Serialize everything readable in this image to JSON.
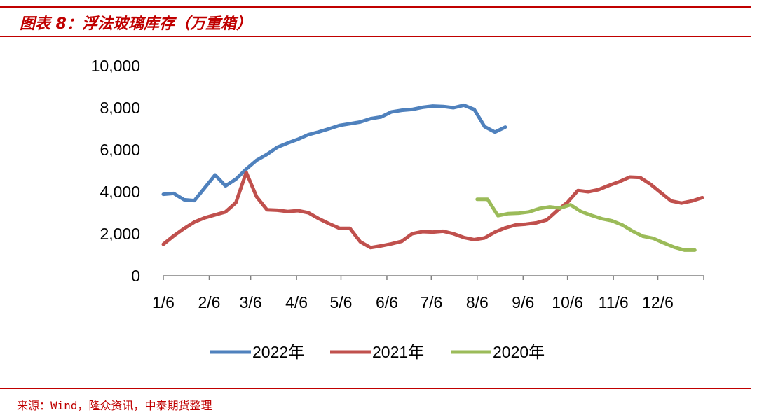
{
  "header": {
    "title": "图表 8：浮法玻璃库存（万重箱）"
  },
  "footer": {
    "source": "来源：Wind，隆众资讯，中泰期货整理"
  },
  "chart_data": {
    "type": "line",
    "title": "图表 8：浮法玻璃库存（万重箱）",
    "xlabel": "",
    "ylabel": "",
    "ylim": [
      0,
      10000
    ],
    "y_ticks": [
      "10,000",
      "8,000",
      "6,000",
      "4,000",
      "2,000",
      "0"
    ],
    "x_ticks": [
      "1/6",
      "2/6",
      "3/6",
      "4/6",
      "5/6",
      "6/6",
      "7/6",
      "8/6",
      "9/6",
      "10/6",
      "11/6",
      "12/6"
    ],
    "grid": false,
    "legend": "bottom",
    "series": [
      {
        "name": "2022年",
        "color": "#4f81bd",
        "points": [
          [
            "1/6",
            3880
          ],
          [
            "1/13",
            3920
          ],
          [
            "1/20",
            3620
          ],
          [
            "1/27",
            3580
          ],
          [
            "2/10",
            4800
          ],
          [
            "2/17",
            4280
          ],
          [
            "2/24",
            4600
          ],
          [
            "3/3",
            5080
          ],
          [
            "3/10",
            5500
          ],
          [
            "3/17",
            5780
          ],
          [
            "3/24",
            6120
          ],
          [
            "3/31",
            6320
          ],
          [
            "4/7",
            6500
          ],
          [
            "4/14",
            6720
          ],
          [
            "4/21",
            6850
          ],
          [
            "4/28",
            7000
          ],
          [
            "5/5",
            7160
          ],
          [
            "5/12",
            7240
          ],
          [
            "5/19",
            7320
          ],
          [
            "5/26",
            7480
          ],
          [
            "6/2",
            7560
          ],
          [
            "6/9",
            7800
          ],
          [
            "6/16",
            7880
          ],
          [
            "6/23",
            7920
          ],
          [
            "6/30",
            8020
          ],
          [
            "7/7",
            8080
          ],
          [
            "7/14",
            8060
          ],
          [
            "7/21",
            8000
          ],
          [
            "7/28",
            8120
          ],
          [
            "8/4",
            7920
          ],
          [
            "8/11",
            7100
          ],
          [
            "8/18",
            6840
          ],
          [
            "8/25",
            7080
          ]
        ]
      },
      {
        "name": "2021年",
        "color": "#c0504d",
        "points": [
          [
            "1/6",
            1500
          ],
          [
            "1/13",
            1900
          ],
          [
            "1/20",
            2250
          ],
          [
            "1/27",
            2560
          ],
          [
            "2/3",
            2760
          ],
          [
            "2/17",
            3040
          ],
          [
            "2/24",
            3480
          ],
          [
            "3/3",
            4920
          ],
          [
            "3/10",
            3760
          ],
          [
            "3/17",
            3140
          ],
          [
            "3/24",
            3120
          ],
          [
            "3/31",
            3060
          ],
          [
            "4/7",
            3100
          ],
          [
            "4/14",
            3000
          ],
          [
            "4/21",
            2720
          ],
          [
            "4/28",
            2480
          ],
          [
            "5/5",
            2260
          ],
          [
            "5/12",
            2260
          ],
          [
            "5/19",
            1620
          ],
          [
            "5/26",
            1340
          ],
          [
            "6/2",
            1420
          ],
          [
            "6/9",
            1520
          ],
          [
            "6/16",
            1640
          ],
          [
            "6/23",
            2000
          ],
          [
            "6/30",
            2100
          ],
          [
            "7/7",
            2080
          ],
          [
            "7/14",
            2120
          ],
          [
            "7/21",
            2000
          ],
          [
            "7/28",
            1820
          ],
          [
            "8/4",
            1720
          ],
          [
            "8/11",
            1800
          ],
          [
            "8/18",
            2080
          ],
          [
            "8/25",
            2280
          ],
          [
            "9/1",
            2420
          ],
          [
            "9/8",
            2460
          ],
          [
            "9/15",
            2520
          ],
          [
            "9/22",
            2660
          ],
          [
            "9/29",
            3100
          ],
          [
            "10/6",
            3500
          ],
          [
            "10/13",
            4060
          ],
          [
            "10/20",
            4000
          ],
          [
            "10/27",
            4100
          ],
          [
            "11/3",
            4300
          ],
          [
            "11/10",
            4480
          ],
          [
            "11/17",
            4700
          ],
          [
            "11/24",
            4680
          ],
          [
            "12/1",
            4360
          ],
          [
            "12/8",
            3960
          ],
          [
            "12/15",
            3560
          ],
          [
            "12/22",
            3460
          ],
          [
            "12/29",
            3560
          ],
          [
            "1/5",
            3720
          ]
        ]
      },
      {
        "name": "2020年",
        "color": "#9bbb59",
        "points": [
          [
            "8/6",
            3640
          ],
          [
            "8/13",
            3640
          ],
          [
            "8/20",
            2860
          ],
          [
            "8/27",
            2960
          ],
          [
            "9/3",
            2980
          ],
          [
            "9/10",
            3040
          ],
          [
            "9/17",
            3200
          ],
          [
            "9/24",
            3280
          ],
          [
            "10/1",
            3220
          ],
          [
            "10/8",
            3380
          ],
          [
            "10/15",
            3060
          ],
          [
            "10/22",
            2880
          ],
          [
            "10/29",
            2720
          ],
          [
            "11/5",
            2620
          ],
          [
            "11/12",
            2420
          ],
          [
            "11/19",
            2120
          ],
          [
            "11/26",
            1880
          ],
          [
            "12/3",
            1780
          ],
          [
            "12/10",
            1560
          ],
          [
            "12/17",
            1360
          ],
          [
            "12/24",
            1220
          ],
          [
            "12/31",
            1220
          ]
        ]
      }
    ]
  }
}
